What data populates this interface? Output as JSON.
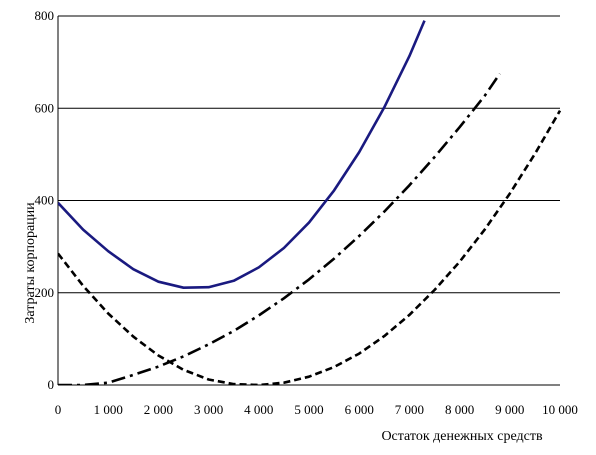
{
  "chart_data": {
    "type": "line",
    "title": "",
    "xlabel": "Остаток денежных средств",
    "ylabel": "Затраты корпорации",
    "xlim": [
      0,
      10000
    ],
    "ylim": [
      0,
      800
    ],
    "x_ticks": [
      0,
      1000,
      2000,
      3000,
      4000,
      5000,
      6000,
      7000,
      8000,
      9000,
      10000
    ],
    "x_tick_labels": [
      "0",
      "1 000",
      "2 000",
      "3 000",
      "4 000",
      "5 000",
      "6 000",
      "7 000",
      "8 000",
      "9 000",
      "10 000"
    ],
    "y_ticks": [
      0,
      200,
      400,
      600,
      800
    ],
    "y_tick_labels": [
      "0",
      "200",
      "400",
      "600",
      "800"
    ],
    "grid": {
      "horizontal": true,
      "vertical": false
    },
    "legend": "none",
    "series": [
      {
        "style": "solid",
        "color": "#1a1a80",
        "x": [
          0,
          500,
          1000,
          1500,
          2000,
          2500,
          3000,
          3500,
          4000,
          4500,
          5000,
          5500,
          6000,
          6500,
          7000,
          7300
        ],
        "y": [
          395,
          337,
          290,
          251,
          224,
          211,
          212,
          226,
          255,
          297,
          352,
          422,
          505,
          602,
          713,
          790
        ]
      },
      {
        "style": "dash-dot",
        "color": "#000000",
        "x": [
          0,
          500,
          1000,
          1500,
          2000,
          2500,
          3000,
          3500,
          4000,
          4500,
          5000,
          5500,
          6000,
          6500,
          7000,
          7500,
          8000,
          8500,
          8800
        ],
        "y": [
          0,
          0,
          5,
          22,
          40,
          62,
          88,
          117,
          151,
          188,
          229,
          274,
          323,
          376,
          433,
          494,
          559,
          627,
          675
        ]
      },
      {
        "style": "dash",
        "color": "#000000",
        "x": [
          0,
          500,
          1000,
          1500,
          2000,
          2500,
          3000,
          3500,
          4000,
          4500,
          5000,
          5500,
          6000,
          6500,
          7000,
          7500,
          8000,
          8500,
          9000,
          9500,
          10000
        ],
        "y": [
          285,
          215,
          155,
          105,
          64,
          33,
          12,
          2,
          0,
          5,
          18,
          39,
          68,
          106,
          152,
          206,
          267,
          337,
          415,
          501,
          595
        ]
      }
    ]
  }
}
